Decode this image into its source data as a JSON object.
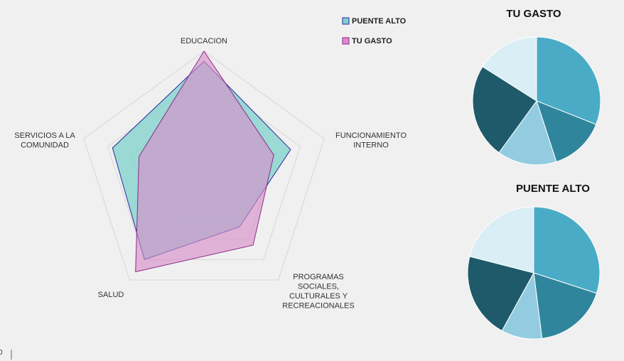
{
  "chart_data": [
    {
      "type": "radar",
      "axes": [
        {
          "key": "educacion",
          "lines": [
            "EDUCACION"
          ]
        },
        {
          "key": "funcionamiento",
          "lines": [
            "FUNCIONAMIENTO",
            "INTERNO"
          ]
        },
        {
          "key": "programas",
          "lines": [
            "PROGRAMAS",
            "SOCIALES,",
            "CULTURALES Y",
            "RECREACIONALES"
          ]
        },
        {
          "key": "salud",
          "lines": [
            "SALUD"
          ]
        },
        {
          "key": "servicios",
          "lines": [
            "SERVICIOS A LA",
            "COMUNIDAD"
          ]
        }
      ],
      "rmax": 5,
      "rings": 5,
      "legend_position": "top-right",
      "series": [
        {
          "name": "PUENTE ALTO",
          "values": [
            4.6,
            3.6,
            2.4,
            4.0,
            3.8
          ],
          "fill": "#7fd1cc",
          "stroke": "#2a2aa0"
        },
        {
          "name": "TU GASTO",
          "values": [
            5.0,
            2.9,
            3.3,
            4.6,
            2.7
          ],
          "fill": "#d98cc8",
          "stroke": "#8b2a8b"
        }
      ]
    },
    {
      "type": "pie",
      "title": "TU GASTO",
      "values": [
        31,
        14,
        15,
        24,
        16
      ],
      "colors": [
        "#4aabc6",
        "#2f869c",
        "#93cce0",
        "#1f5a6a",
        "#d9eef5"
      ]
    },
    {
      "type": "pie",
      "title": "PUENTE ALTO",
      "values": [
        30,
        18,
        10,
        21,
        21
      ],
      "colors": [
        "#4aabc6",
        "#2f869c",
        "#93cce0",
        "#1f5a6a",
        "#d9eef5"
      ]
    }
  ],
  "stray_text": "0"
}
